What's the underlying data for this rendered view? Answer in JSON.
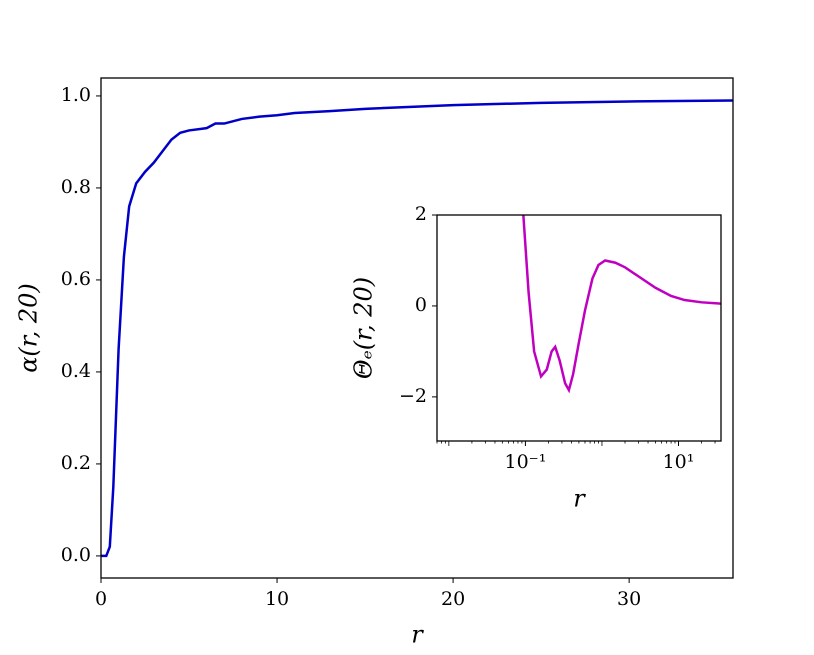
{
  "chart_data": [
    {
      "type": "line",
      "xlabel": "r",
      "ylabel": "α(r, 20)",
      "x": [
        0,
        0.3,
        0.5,
        0.7,
        1.0,
        1.3,
        1.6,
        2.0,
        2.5,
        3,
        3.5,
        4,
        4.5,
        5,
        6,
        6.5,
        7,
        8,
        9,
        10,
        11,
        13,
        15,
        20,
        25,
        30,
        35.9
      ],
      "series": [
        {
          "name": "α(r, 20)",
          "color": "#0000c8",
          "values": [
            0,
            0,
            0.02,
            0.15,
            0.45,
            0.65,
            0.76,
            0.81,
            0.835,
            0.855,
            0.88,
            0.905,
            0.92,
            0.925,
            0.93,
            0.94,
            0.94,
            0.95,
            0.955,
            0.958,
            0.963,
            0.967,
            0.972,
            0.98,
            0.985,
            0.988,
            0.99
          ]
        }
      ],
      "xlim": [
        0,
        35.9
      ],
      "ylim": [
        -0.048,
        1.039
      ],
      "xticks": [
        0,
        10,
        20,
        30
      ],
      "yticks": [
        {
          "value": 0,
          "label": "0.0"
        },
        {
          "value": 0.2,
          "label": "0.2"
        },
        {
          "value": 0.4,
          "label": "0.4"
        },
        {
          "value": 0.6,
          "label": "0.6"
        },
        {
          "value": 0.8,
          "label": "0.8"
        },
        {
          "value": 1,
          "label": "1.0"
        }
      ]
    },
    {
      "type": "line",
      "xlabel": "r",
      "ylabel": "Θₑ(r, 20)",
      "xscale": "log",
      "x": [
        0.094,
        0.11,
        0.13,
        0.16,
        0.19,
        0.22,
        0.245,
        0.28,
        0.33,
        0.37,
        0.42,
        0.5,
        0.6,
        0.75,
        0.9,
        1.1,
        1.5,
        2,
        3,
        5,
        8,
        12,
        20,
        35.9
      ],
      "series": [
        {
          "name": "Θₑ(r, 20)",
          "color": "#c000c0",
          "values": [
            2.0,
            0.3,
            -1.0,
            -1.55,
            -1.4,
            -1.0,
            -0.9,
            -1.2,
            -1.7,
            -1.85,
            -1.5,
            -0.8,
            -0.1,
            0.6,
            0.9,
            1.0,
            0.95,
            0.85,
            0.65,
            0.4,
            0.22,
            0.13,
            0.08,
            0.05
          ]
        }
      ],
      "xlim": [
        0.007,
        35.9
      ],
      "ylim": [
        -2.97,
        2
      ],
      "xticks": [
        {
          "value": 0.1,
          "label": "10⁻¹"
        },
        {
          "value": 10,
          "label": "10¹"
        }
      ],
      "yticks": [
        {
          "value": -2,
          "label": "−2"
        },
        0,
        2
      ]
    }
  ]
}
